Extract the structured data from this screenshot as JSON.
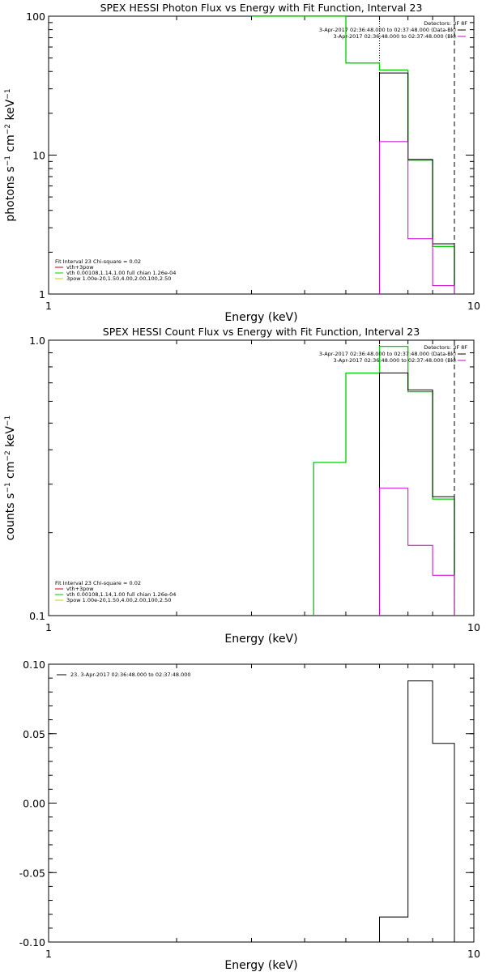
{
  "chart_data": [
    {
      "type": "line",
      "title": "SPEX HESSI Photon Flux vs Energy with Fit Function, Interval 23",
      "xlabel": "Energy (keV)",
      "ylabel_base": "photons s",
      "ylabel_sup1": "−1",
      "ylabel_mid": " cm",
      "ylabel_sup2": "−2",
      "ylabel_end": " keV",
      "ylabel_sup3": "−1",
      "x_scale": "log",
      "y_scale": "log",
      "xlim": [
        1,
        10
      ],
      "ylim": [
        1,
        100
      ],
      "x_ticks": [
        {
          "v": 1,
          "label": "1"
        },
        {
          "v": 10,
          "label": "10"
        }
      ],
      "y_ticks": [
        {
          "v": 1,
          "label": "1"
        },
        {
          "v": 10,
          "label": "10"
        },
        {
          "v": 100,
          "label": "100"
        }
      ],
      "detectors_label": "Detectors: 3F 8F",
      "legend_right": [
        {
          "text": "3-Apr-2017 02:36:48.000 to 02:37:48.000 (Data-Bk)",
          "color": "#000000"
        },
        {
          "text": "3-Apr-2017 02:36:48.000 to 02:37:48.000 (Bk)",
          "color": "#cc00cc"
        }
      ],
      "fit_header": "Fit Interval 23   Chi-square = 0.02",
      "legend_left": [
        {
          "text": "vth+3pow",
          "color": "#cc0000"
        },
        {
          "text": "vth 0.00108,1.14,1.00  full chian 1.26e-04",
          "color": "#00cc00"
        },
        {
          "text": "3pow 1.00e-20,1.50,4.00,2.00,100,2.50",
          "color": "#cccc00"
        }
      ],
      "vlines": [
        {
          "x": 6.0,
          "style": "dotted"
        },
        {
          "x": 9.0,
          "style": "dashed"
        }
      ],
      "series": [
        {
          "color": "#00cc00",
          "width": 1.3,
          "points": [
            [
              3.0,
              100
            ],
            [
              3.0,
              100
            ],
            [
              5.0,
              100
            ],
            [
              5.0,
              46
            ],
            [
              6.0,
              46
            ],
            [
              6.0,
              41
            ],
            [
              7.0,
              41
            ],
            [
              7.0,
              9.2
            ],
            [
              8.0,
              9.2
            ],
            [
              8.0,
              2.2
            ],
            [
              9.0,
              2.2
            ],
            [
              9.0,
              1
            ]
          ]
        },
        {
          "color": "#000000",
          "width": 1.0,
          "points": [
            [
              6.0,
              1
            ],
            [
              6.0,
              39
            ],
            [
              7.0,
              39
            ],
            [
              7.0,
              9.3
            ],
            [
              8.0,
              9.3
            ],
            [
              8.0,
              2.3
            ],
            [
              9.0,
              2.3
            ],
            [
              9.0,
              1
            ]
          ]
        },
        {
          "color": "#cc00cc",
          "width": 1.0,
          "points": [
            [
              6.0,
              1
            ],
            [
              6.0,
              12.5
            ],
            [
              7.0,
              12.5
            ],
            [
              7.0,
              2.5
            ],
            [
              8.0,
              2.5
            ],
            [
              8.0,
              1.15
            ],
            [
              9.0,
              1.15
            ],
            [
              9.0,
              1
            ]
          ]
        }
      ]
    },
    {
      "type": "line",
      "title": "SPEX HESSI Count Flux vs Energy with Fit Function, Interval 23",
      "xlabel": "Energy (keV)",
      "ylabel_base": "counts s",
      "ylabel_sup1": "−1",
      "ylabel_mid": " cm",
      "ylabel_sup2": "−2",
      "ylabel_end": " keV",
      "ylabel_sup3": "−1",
      "x_scale": "log",
      "y_scale": "log",
      "xlim": [
        1,
        10
      ],
      "ylim": [
        0.1,
        1.0
      ],
      "x_ticks": [
        {
          "v": 1,
          "label": "1"
        },
        {
          "v": 10,
          "label": "10"
        }
      ],
      "y_ticks": [
        {
          "v": 0.1,
          "label": "0.1"
        },
        {
          "v": 1.0,
          "label": "1.0"
        }
      ],
      "detectors_label": "Detectors: 3F 8F",
      "legend_right": [
        {
          "text": "3-Apr-2017 02:36:48.000 to 02:37:48.000 (Data-Bk)",
          "color": "#000000"
        },
        {
          "text": "3-Apr-2017 02:36:48.000 to 02:37:48.000 (Bk)",
          "color": "#cc00cc"
        }
      ],
      "fit_header": "Fit Interval 23   Chi-square = 0.02",
      "legend_left": [
        {
          "text": "vth+3pow",
          "color": "#cc0000"
        },
        {
          "text": "vth 0.00108,1.14,1.00  full chian 1.26e-04",
          "color": "#00cc00"
        },
        {
          "text": "3pow 1.00e-20,1.50,4.00,2.00,100,2.50",
          "color": "#cccc00"
        }
      ],
      "vlines": [
        {
          "x": 6.0,
          "style": "dotted"
        },
        {
          "x": 9.0,
          "style": "dashed"
        }
      ],
      "series": [
        {
          "color": "#00cc00",
          "width": 1.3,
          "points": [
            [
              4.2,
              0.1
            ],
            [
              4.2,
              0.36
            ],
            [
              5.0,
              0.36
            ],
            [
              5.0,
              0.76
            ],
            [
              6.0,
              0.76
            ],
            [
              6.0,
              0.95
            ],
            [
              7.0,
              0.95
            ],
            [
              7.0,
              0.65
            ],
            [
              8.0,
              0.65
            ],
            [
              8.0,
              0.265
            ],
            [
              9.0,
              0.265
            ],
            [
              9.0,
              0.1
            ]
          ]
        },
        {
          "color": "#000000",
          "width": 1.0,
          "points": [
            [
              6.0,
              0.1
            ],
            [
              6.0,
              0.76
            ],
            [
              7.0,
              0.76
            ],
            [
              7.0,
              0.66
            ],
            [
              8.0,
              0.66
            ],
            [
              8.0,
              0.27
            ],
            [
              9.0,
              0.27
            ],
            [
              9.0,
              0.1
            ]
          ]
        },
        {
          "color": "#cc00cc",
          "width": 1.0,
          "points": [
            [
              6.0,
              0.1
            ],
            [
              6.0,
              0.29
            ],
            [
              7.0,
              0.29
            ],
            [
              7.0,
              0.18
            ],
            [
              8.0,
              0.18
            ],
            [
              8.0,
              0.14
            ],
            [
              9.0,
              0.14
            ],
            [
              9.0,
              0.1
            ]
          ]
        }
      ]
    },
    {
      "type": "line",
      "title": "",
      "xlabel": "Energy (keV)",
      "ylabel_base": "",
      "x_scale": "log",
      "y_scale": "linear",
      "xlim": [
        1,
        10
      ],
      "ylim": [
        -0.1,
        0.1
      ],
      "x_ticks": [
        {
          "v": 1,
          "label": "1"
        },
        {
          "v": 10,
          "label": "10"
        }
      ],
      "y_ticks": [
        {
          "v": -0.1,
          "label": "-0.10"
        },
        {
          "v": -0.05,
          "label": "-0.05"
        },
        {
          "v": 0.0,
          "label": "0.00"
        },
        {
          "v": 0.05,
          "label": "0.05"
        },
        {
          "v": 0.1,
          "label": "0.10"
        }
      ],
      "legend_left_top": [
        {
          "text": "23.  3-Apr-2017 02:36:48.000 to 02:37:48.000",
          "color": "#000000"
        }
      ],
      "vlines": [],
      "series": [
        {
          "color": "#000000",
          "width": 1.0,
          "points": [
            [
              6.0,
              -0.1
            ],
            [
              6.0,
              -0.082
            ],
            [
              7.0,
              -0.082
            ],
            [
              7.0,
              0.088
            ],
            [
              8.0,
              0.088
            ],
            [
              8.0,
              0.043
            ],
            [
              9.0,
              0.043
            ],
            [
              9.0,
              -0.1
            ]
          ]
        }
      ]
    }
  ]
}
